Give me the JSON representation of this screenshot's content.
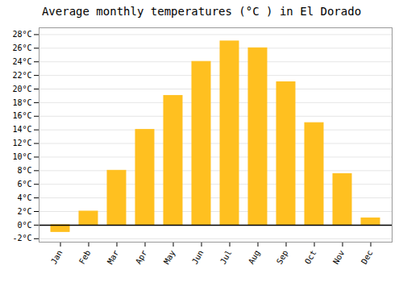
{
  "chart_data": {
    "type": "bar",
    "title": "Average monthly temperatures (°C ) in El Dorado",
    "categories": [
      "Jan",
      "Feb",
      "Mar",
      "Apr",
      "May",
      "Jun",
      "Jul",
      "Aug",
      "Sep",
      "Oct",
      "Nov",
      "Dec"
    ],
    "values": [
      -1,
      2,
      8,
      14,
      19,
      24,
      27,
      26,
      21,
      15,
      7.5,
      1
    ],
    "color": "#FFC020",
    "ylim": [
      -2.5,
      29
    ],
    "yticks": [
      {
        "value": -2,
        "label": "-2°C"
      },
      {
        "value": 0,
        "label": "0°C"
      },
      {
        "value": 2,
        "label": "2°C"
      },
      {
        "value": 4,
        "label": "4°C"
      },
      {
        "value": 6,
        "label": "6°C"
      },
      {
        "value": 8,
        "label": "8°C"
      },
      {
        "value": 10,
        "label": "10°C"
      },
      {
        "value": 12,
        "label": "12°C"
      },
      {
        "value": 14,
        "label": "14°C"
      },
      {
        "value": 16,
        "label": "16°C"
      },
      {
        "value": 18,
        "label": "18°C"
      },
      {
        "value": 20,
        "label": "20°C"
      },
      {
        "value": 22,
        "label": "22°C"
      },
      {
        "value": 24,
        "label": "24°C"
      },
      {
        "value": 26,
        "label": "26°C"
      },
      {
        "value": 28,
        "label": "28°C"
      }
    ],
    "grid": true
  }
}
